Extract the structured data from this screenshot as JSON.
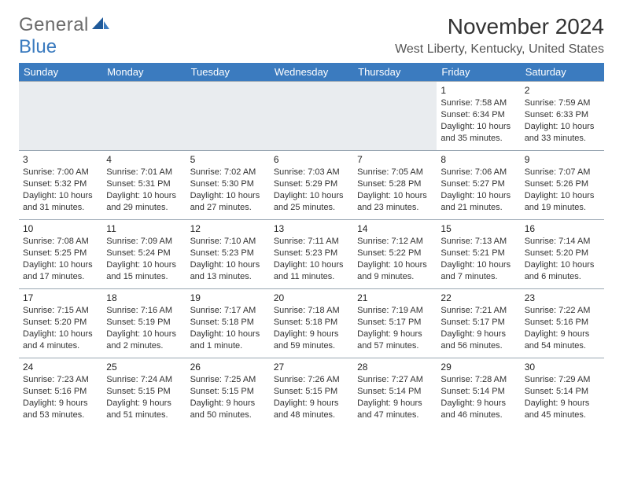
{
  "logo": {
    "text1": "General",
    "text2": "Blue"
  },
  "title": "November 2024",
  "location": "West Liberty, Kentucky, United States",
  "colors": {
    "header_bg": "#3b7bbf",
    "header_text": "#ffffff",
    "cell_border": "#9aa7b3",
    "first_row_bg": "#e9ecef",
    "text": "#333333",
    "logo_gray": "#6b6b6b",
    "logo_blue": "#3b7bbf"
  },
  "weekdays": [
    "Sunday",
    "Monday",
    "Tuesday",
    "Wednesday",
    "Thursday",
    "Friday",
    "Saturday"
  ],
  "weeks": [
    [
      null,
      null,
      null,
      null,
      null,
      {
        "n": "1",
        "rise": "Sunrise: 7:58 AM",
        "set": "Sunset: 6:34 PM",
        "d1": "Daylight: 10 hours",
        "d2": "and 35 minutes."
      },
      {
        "n": "2",
        "rise": "Sunrise: 7:59 AM",
        "set": "Sunset: 6:33 PM",
        "d1": "Daylight: 10 hours",
        "d2": "and 33 minutes."
      }
    ],
    [
      {
        "n": "3",
        "rise": "Sunrise: 7:00 AM",
        "set": "Sunset: 5:32 PM",
        "d1": "Daylight: 10 hours",
        "d2": "and 31 minutes."
      },
      {
        "n": "4",
        "rise": "Sunrise: 7:01 AM",
        "set": "Sunset: 5:31 PM",
        "d1": "Daylight: 10 hours",
        "d2": "and 29 minutes."
      },
      {
        "n": "5",
        "rise": "Sunrise: 7:02 AM",
        "set": "Sunset: 5:30 PM",
        "d1": "Daylight: 10 hours",
        "d2": "and 27 minutes."
      },
      {
        "n": "6",
        "rise": "Sunrise: 7:03 AM",
        "set": "Sunset: 5:29 PM",
        "d1": "Daylight: 10 hours",
        "d2": "and 25 minutes."
      },
      {
        "n": "7",
        "rise": "Sunrise: 7:05 AM",
        "set": "Sunset: 5:28 PM",
        "d1": "Daylight: 10 hours",
        "d2": "and 23 minutes."
      },
      {
        "n": "8",
        "rise": "Sunrise: 7:06 AM",
        "set": "Sunset: 5:27 PM",
        "d1": "Daylight: 10 hours",
        "d2": "and 21 minutes."
      },
      {
        "n": "9",
        "rise": "Sunrise: 7:07 AM",
        "set": "Sunset: 5:26 PM",
        "d1": "Daylight: 10 hours",
        "d2": "and 19 minutes."
      }
    ],
    [
      {
        "n": "10",
        "rise": "Sunrise: 7:08 AM",
        "set": "Sunset: 5:25 PM",
        "d1": "Daylight: 10 hours",
        "d2": "and 17 minutes."
      },
      {
        "n": "11",
        "rise": "Sunrise: 7:09 AM",
        "set": "Sunset: 5:24 PM",
        "d1": "Daylight: 10 hours",
        "d2": "and 15 minutes."
      },
      {
        "n": "12",
        "rise": "Sunrise: 7:10 AM",
        "set": "Sunset: 5:23 PM",
        "d1": "Daylight: 10 hours",
        "d2": "and 13 minutes."
      },
      {
        "n": "13",
        "rise": "Sunrise: 7:11 AM",
        "set": "Sunset: 5:23 PM",
        "d1": "Daylight: 10 hours",
        "d2": "and 11 minutes."
      },
      {
        "n": "14",
        "rise": "Sunrise: 7:12 AM",
        "set": "Sunset: 5:22 PM",
        "d1": "Daylight: 10 hours",
        "d2": "and 9 minutes."
      },
      {
        "n": "15",
        "rise": "Sunrise: 7:13 AM",
        "set": "Sunset: 5:21 PM",
        "d1": "Daylight: 10 hours",
        "d2": "and 7 minutes."
      },
      {
        "n": "16",
        "rise": "Sunrise: 7:14 AM",
        "set": "Sunset: 5:20 PM",
        "d1": "Daylight: 10 hours",
        "d2": "and 6 minutes."
      }
    ],
    [
      {
        "n": "17",
        "rise": "Sunrise: 7:15 AM",
        "set": "Sunset: 5:20 PM",
        "d1": "Daylight: 10 hours",
        "d2": "and 4 minutes."
      },
      {
        "n": "18",
        "rise": "Sunrise: 7:16 AM",
        "set": "Sunset: 5:19 PM",
        "d1": "Daylight: 10 hours",
        "d2": "and 2 minutes."
      },
      {
        "n": "19",
        "rise": "Sunrise: 7:17 AM",
        "set": "Sunset: 5:18 PM",
        "d1": "Daylight: 10 hours",
        "d2": "and 1 minute."
      },
      {
        "n": "20",
        "rise": "Sunrise: 7:18 AM",
        "set": "Sunset: 5:18 PM",
        "d1": "Daylight: 9 hours",
        "d2": "and 59 minutes."
      },
      {
        "n": "21",
        "rise": "Sunrise: 7:19 AM",
        "set": "Sunset: 5:17 PM",
        "d1": "Daylight: 9 hours",
        "d2": "and 57 minutes."
      },
      {
        "n": "22",
        "rise": "Sunrise: 7:21 AM",
        "set": "Sunset: 5:17 PM",
        "d1": "Daylight: 9 hours",
        "d2": "and 56 minutes."
      },
      {
        "n": "23",
        "rise": "Sunrise: 7:22 AM",
        "set": "Sunset: 5:16 PM",
        "d1": "Daylight: 9 hours",
        "d2": "and 54 minutes."
      }
    ],
    [
      {
        "n": "24",
        "rise": "Sunrise: 7:23 AM",
        "set": "Sunset: 5:16 PM",
        "d1": "Daylight: 9 hours",
        "d2": "and 53 minutes."
      },
      {
        "n": "25",
        "rise": "Sunrise: 7:24 AM",
        "set": "Sunset: 5:15 PM",
        "d1": "Daylight: 9 hours",
        "d2": "and 51 minutes."
      },
      {
        "n": "26",
        "rise": "Sunrise: 7:25 AM",
        "set": "Sunset: 5:15 PM",
        "d1": "Daylight: 9 hours",
        "d2": "and 50 minutes."
      },
      {
        "n": "27",
        "rise": "Sunrise: 7:26 AM",
        "set": "Sunset: 5:15 PM",
        "d1": "Daylight: 9 hours",
        "d2": "and 48 minutes."
      },
      {
        "n": "28",
        "rise": "Sunrise: 7:27 AM",
        "set": "Sunset: 5:14 PM",
        "d1": "Daylight: 9 hours",
        "d2": "and 47 minutes."
      },
      {
        "n": "29",
        "rise": "Sunrise: 7:28 AM",
        "set": "Sunset: 5:14 PM",
        "d1": "Daylight: 9 hours",
        "d2": "and 46 minutes."
      },
      {
        "n": "30",
        "rise": "Sunrise: 7:29 AM",
        "set": "Sunset: 5:14 PM",
        "d1": "Daylight: 9 hours",
        "d2": "and 45 minutes."
      }
    ]
  ]
}
